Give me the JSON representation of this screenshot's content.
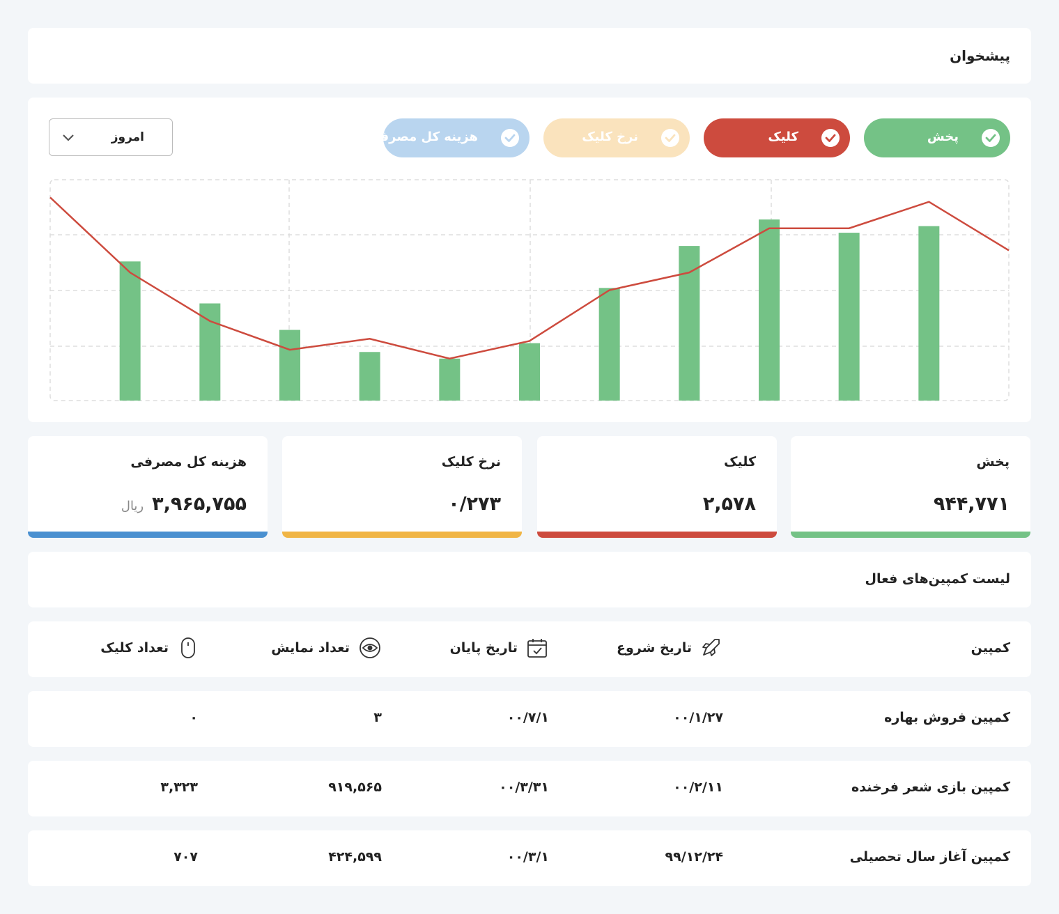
{
  "header": {
    "title": "پیشخوان"
  },
  "chart_data": {
    "type": "combo",
    "legend": [
      {
        "name": "پخش",
        "color": "#74c286"
      },
      {
        "name": "کلیک",
        "color": "#cd4b3e"
      },
      {
        "name": "نرخ کلیک",
        "color": "#fae3bd"
      },
      {
        "name": "هزینه کل مصرفی",
        "color": "#b9d5ef"
      }
    ],
    "period": "امروز",
    "xlim": [
      0,
      12
    ],
    "ylim": [
      0,
      100
    ],
    "series": [
      {
        "type": "bar",
        "color": "#74c286",
        "x": [
          1,
          2,
          3,
          4,
          5,
          6,
          7,
          8,
          9,
          10,
          11
        ],
        "values": [
          63,
          44,
          32,
          22,
          19,
          26,
          51,
          70,
          82,
          76,
          79
        ]
      },
      {
        "type": "line",
        "color": "#cd4b3e",
        "x": [
          0,
          1,
          2,
          3,
          4,
          5,
          6,
          7,
          8,
          9,
          10,
          11,
          12
        ],
        "values": [
          92,
          58,
          36,
          23,
          28,
          19,
          27,
          50,
          58,
          78,
          78,
          90,
          68
        ]
      }
    ]
  },
  "stats": [
    {
      "title": "پخش",
      "value": "۹۴۴,۷۷۱",
      "color": "#74c286"
    },
    {
      "title": "کلیک",
      "value": "۲,۵۷۸",
      "color": "#cd4b3e"
    },
    {
      "title": "نرخ کلیک",
      "value": "۰/۲۷۳",
      "color": "#f0b545"
    },
    {
      "title": "هزینه کل مصرفی",
      "value": "۳,۹۶۵,۷۵۵",
      "unit": "ریال",
      "color": "#4a90d0"
    }
  ],
  "list_title": "لیست کمپین‌های فعال",
  "table": {
    "headers": [
      "کمپین",
      "تاریخ شروع",
      "تاریخ پایان",
      "تعداد نمایش",
      "تعداد کلیک"
    ],
    "rows": [
      [
        "کمپین فروش بهاره",
        "۰۰/۱/۲۷",
        "۰۰/۷/۱",
        "۳",
        "۰"
      ],
      [
        "کمپین بازی شعر فرخنده",
        "۰۰/۲/۱۱",
        "۰۰/۳/۳۱",
        "۹۱۹,۵۶۵",
        "۳,۳۲۳"
      ],
      [
        "کمپین آغاز سال تحصیلی",
        "۹۹/۱۲/۲۴",
        "۰۰/۳/۱",
        "۴۲۴,۵۹۹",
        "۷۰۷"
      ]
    ]
  }
}
